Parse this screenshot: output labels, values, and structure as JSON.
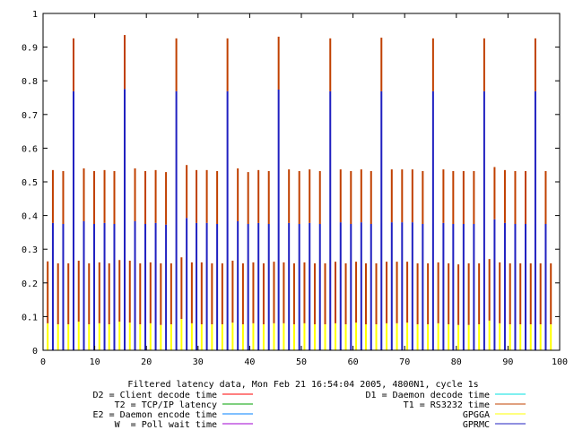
{
  "chart_data": {
    "type": "bar",
    "stacked": true,
    "title": "Filtered latency data, Mon Feb 21 16:54:04 2005, 4800N1, cycle 1s",
    "xlabel": "",
    "ylabel": "",
    "xlim": [
      0,
      100
    ],
    "ylim": [
      0,
      1
    ],
    "xticks": [
      "0",
      "10",
      "20",
      "30",
      "40",
      "50",
      "60",
      "70",
      "80",
      "90",
      "100"
    ],
    "yticks": [
      "0",
      "0.1",
      "0.2",
      "0.3",
      "0.4",
      "0.5",
      "0.6",
      "0.7",
      "0.8",
      "0.9",
      "1"
    ],
    "grid": false,
    "legend_placement": "bottom",
    "legend": [
      {
        "label": "D2 = Client decode time",
        "color": "#ff0000"
      },
      {
        "label": "T2 = TCP/IP latency",
        "color": "#00a000"
      },
      {
        "label": "E2 = Daemon encode time",
        "color": "#0080ff"
      },
      {
        "label": "W  = Poll wait time",
        "color": "#a000d0"
      },
      {
        "label": "D1 = Daemon decode time",
        "color": "#00e0e0"
      },
      {
        "label": "T1 = RS3232 time",
        "color": "#c04000"
      },
      {
        "label": "GPGGA",
        "color": "#ffff00"
      },
      {
        "label": "GPRMC",
        "color": "#2020c0"
      }
    ],
    "x": [
      0.9,
      1.9,
      2.9,
      3.9,
      4.9,
      5.9,
      6.9,
      7.9,
      8.9,
      9.9,
      10.9,
      11.9,
      12.8,
      13.8,
      14.8,
      15.8,
      16.8,
      17.8,
      18.8,
      19.8,
      20.8,
      21.8,
      22.8,
      23.8,
      24.8,
      25.8,
      26.8,
      27.8,
      28.8,
      29.7,
      30.7,
      31.7,
      32.7,
      33.7,
      34.7,
      35.7,
      36.7,
      37.7,
      38.7,
      39.7,
      40.7,
      41.7,
      42.7,
      43.7,
      44.7,
      45.6,
      46.6,
      47.6,
      48.6,
      49.6,
      50.6,
      51.6,
      52.6,
      53.6,
      54.6,
      55.6,
      56.6,
      57.6,
      58.6,
      59.6,
      60.6,
      61.6,
      62.5,
      63.5,
      64.5,
      65.5,
      66.5,
      67.5,
      68.5,
      69.5,
      70.5,
      71.5,
      72.5,
      73.5,
      74.5,
      75.5,
      76.5,
      77.5,
      78.5,
      79.4,
      80.4,
      81.4,
      82.4,
      83.4,
      84.4,
      85.4,
      86.4,
      87.4,
      88.4,
      89.4,
      90.4,
      91.4,
      92.4,
      93.4,
      94.4,
      95.3,
      96.3,
      97.3,
      98.3
    ],
    "series": [
      {
        "name": "GPGGA",
        "color": "#ffff00",
        "values": [
          0.08,
          null,
          0.077,
          null,
          0.077,
          null,
          0.085,
          null,
          0.077,
          null,
          0.08,
          null,
          0.077,
          null,
          0.085,
          null,
          0.082,
          null,
          0.077,
          null,
          0.08,
          null,
          0.075,
          null,
          0.077,
          null,
          0.093,
          null,
          0.08,
          null,
          0.077,
          null,
          0.077,
          null,
          0.077,
          null,
          0.082,
          null,
          0.077,
          null,
          0.08,
          null,
          0.077,
          null,
          0.08,
          null,
          0.08,
          null,
          0.077,
          null,
          0.08,
          null,
          0.077,
          null,
          0.077,
          null,
          0.08,
          null,
          0.077,
          null,
          0.082,
          null,
          0.077,
          null,
          0.077,
          null,
          0.08,
          null,
          0.08,
          null,
          0.082,
          null,
          0.077,
          null,
          0.077,
          null,
          0.08,
          null,
          0.077,
          null,
          0.075,
          null,
          0.075,
          null,
          0.077,
          null,
          0.088,
          null,
          0.08,
          null,
          0.077,
          null,
          0.077,
          null,
          0.077,
          null,
          0.077,
          null,
          0.077
        ]
      },
      {
        "name": "GPRMC",
        "color": "#2020c0",
        "values": [
          null,
          0.378,
          null,
          0.375,
          null,
          0.769,
          null,
          0.383,
          null,
          0.375,
          null,
          0.378,
          null,
          0.375,
          null,
          0.776,
          null,
          0.383,
          null,
          0.375,
          null,
          0.378,
          null,
          0.373,
          null,
          0.769,
          null,
          0.393,
          null,
          0.378,
          null,
          0.378,
          null,
          0.375,
          null,
          0.769,
          null,
          0.383,
          null,
          0.375,
          null,
          0.378,
          null,
          0.375,
          null,
          0.774,
          null,
          0.378,
          null,
          0.375,
          null,
          0.378,
          null,
          0.375,
          null,
          0.769,
          null,
          0.38,
          null,
          0.375,
          null,
          0.38,
          null,
          0.375,
          null,
          0.769,
          null,
          0.38,
          null,
          0.38,
          null,
          0.38,
          null,
          0.375,
          null,
          0.769,
          null,
          0.378,
          null,
          0.375,
          null,
          0.375,
          null,
          0.375,
          null,
          0.769,
          null,
          0.389,
          null,
          0.378,
          null,
          0.375,
          null,
          0.375,
          null,
          0.769,
          null,
          0.375,
          null
        ]
      },
      {
        "name": "T1 = RS3232 time",
        "color": "#c04000",
        "values": [
          0.184,
          0.157,
          0.181,
          0.157,
          0.181,
          0.157,
          0.181,
          0.157,
          0.181,
          0.157,
          0.181,
          0.157,
          0.181,
          0.157,
          0.183,
          0.16,
          0.184,
          0.157,
          0.181,
          0.157,
          0.181,
          0.157,
          0.183,
          0.156,
          0.181,
          0.157,
          0.183,
          0.157,
          0.181,
          0.157,
          0.184,
          0.157,
          0.181,
          0.157,
          0.181,
          0.157,
          0.184,
          0.157,
          0.181,
          0.154,
          0.181,
          0.157,
          0.181,
          0.157,
          0.183,
          0.157,
          0.181,
          0.159,
          0.181,
          0.157,
          0.181,
          0.159,
          0.181,
          0.157,
          0.181,
          0.157,
          0.183,
          0.157,
          0.181,
          0.157,
          0.181,
          0.157,
          0.181,
          0.157,
          0.181,
          0.159,
          0.183,
          0.157,
          0.183,
          0.157,
          0.181,
          0.157,
          0.181,
          0.157,
          0.181,
          0.157,
          0.181,
          0.159,
          0.181,
          0.157,
          0.18,
          0.157,
          0.183,
          0.157,
          0.181,
          0.157,
          0.183,
          0.155,
          0.181,
          0.157,
          0.181,
          0.157,
          0.181,
          0.157,
          0.181,
          0.157,
          0.181,
          0.157,
          0.181
        ]
      }
    ]
  }
}
